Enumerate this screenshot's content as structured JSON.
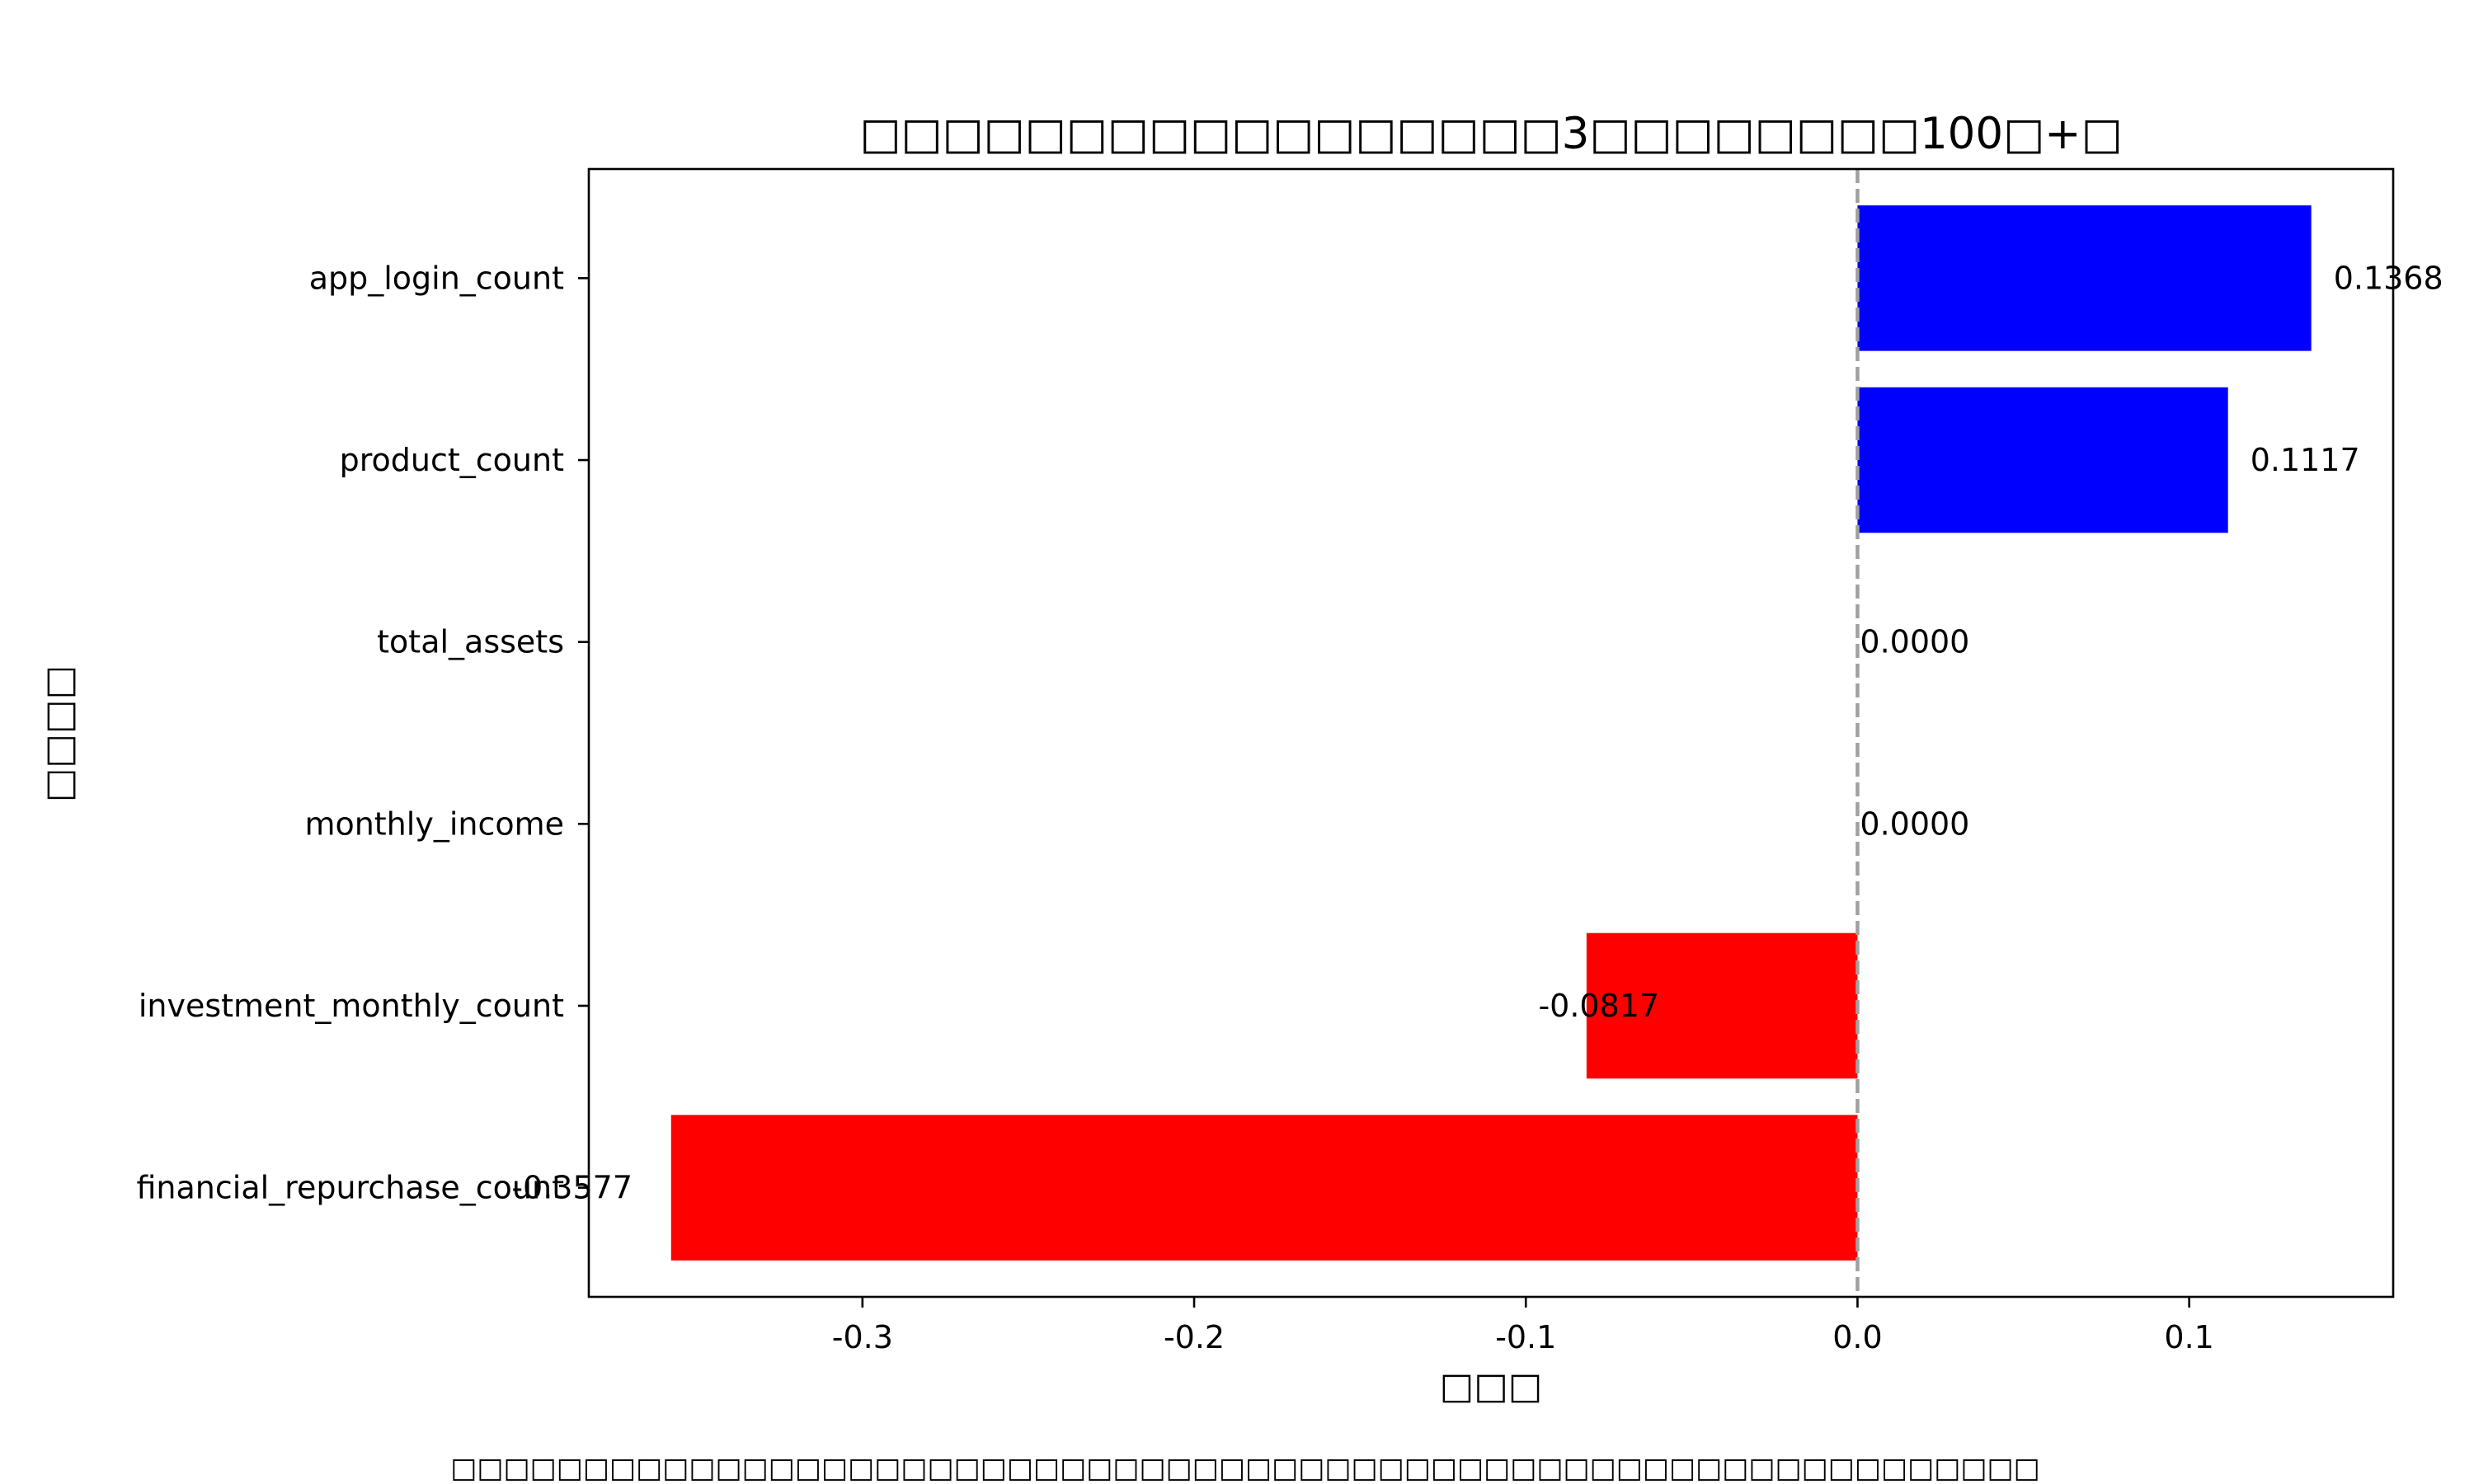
{
  "chart_data": {
    "type": "bar",
    "orientation": "horizontal",
    "title": "□□□□□□□□□□□□□□□□□3□□□□□□□□100□+□",
    "xlabel": "□□□",
    "ylabel": "□□□□",
    "footnote": "□□□□□□□□□□□□□□□□□□□□□□□□□□□□□□□□□□□□□□□□□□□□□□□□□□□□□□□□□□□□",
    "categories": [
      "app_login_count",
      "product_count",
      "total_assets",
      "monthly_income",
      "investment_monthly_count",
      "financial_repurchase_count"
    ],
    "values": [
      0.1368,
      0.1117,
      0.0,
      0.0,
      -0.0817,
      -0.3577
    ],
    "data_labels": [
      "0.1368",
      "0.1117",
      "0.0000",
      "0.0000",
      "-0.0817",
      "-0.3577"
    ],
    "xlim": [
      -0.3825,
      0.1615
    ],
    "xticks": [
      -0.3,
      -0.2,
      -0.1,
      0.0,
      0.1
    ],
    "xtick_labels": [
      "-0.3",
      "-0.2",
      "-0.1",
      "0.0",
      "0.1"
    ],
    "reference_line": 0.0,
    "grid": false,
    "colors": {
      "positive": "#0000ff",
      "negative": "#ff0000",
      "zero_line": "#a0a0a0"
    }
  }
}
